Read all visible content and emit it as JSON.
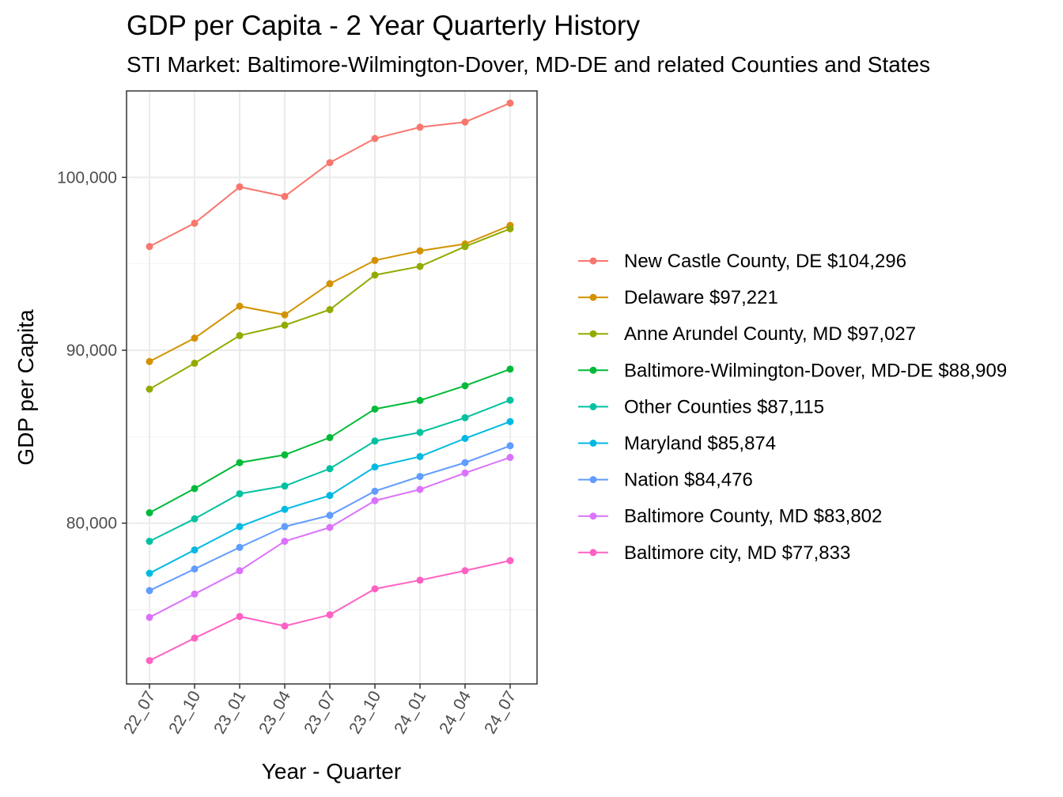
{
  "chart_data": {
    "type": "line",
    "title": "GDP per Capita - 2 Year Quarterly History",
    "subtitle": "STI Market: Baltimore-Wilmington-Dover, MD-DE and related Counties and States",
    "xlabel": "Year - Quarter",
    "ylabel": "GDP per Capita",
    "categories": [
      "22_07",
      "22_10",
      "23_01",
      "23_04",
      "23_07",
      "23_10",
      "24_01",
      "24_04",
      "24_07"
    ],
    "ylim": [
      70700,
      105000
    ],
    "yticks": [
      80000,
      90000,
      100000
    ],
    "ytick_labels": [
      "80,000",
      "90,000",
      "100,000"
    ],
    "grid": true,
    "legend_position": "right",
    "series": [
      {
        "name": "New Castle County, DE $104,296",
        "color": "#F8766D",
        "values": [
          96000,
          97350,
          99450,
          98900,
          100850,
          102250,
          102900,
          103200,
          104296
        ]
      },
      {
        "name": "Delaware $97,221",
        "color": "#D39200",
        "values": [
          89350,
          90700,
          92550,
          92050,
          93850,
          95200,
          95750,
          96150,
          97221
        ]
      },
      {
        "name": "Anne Arundel County, MD $97,027",
        "color": "#93AA00",
        "values": [
          87750,
          89250,
          90850,
          91450,
          92350,
          94350,
          94850,
          96000,
          97027
        ]
      },
      {
        "name": "Baltimore-Wilmington-Dover, MD-DE $88,909",
        "color": "#00BA38",
        "values": [
          80600,
          82000,
          83500,
          83950,
          84950,
          86600,
          87100,
          87950,
          88909
        ]
      },
      {
        "name": "Other Counties $87,115",
        "color": "#00C19F",
        "values": [
          78950,
          80250,
          81700,
          82150,
          83150,
          84750,
          85250,
          86100,
          87115
        ]
      },
      {
        "name": "Maryland $85,874",
        "color": "#00B9E3",
        "values": [
          77100,
          78450,
          79800,
          80800,
          81600,
          83250,
          83850,
          84900,
          85874
        ]
      },
      {
        "name": "Nation $84,476",
        "color": "#619CFF",
        "values": [
          76100,
          77350,
          78600,
          79800,
          80450,
          81850,
          82700,
          83500,
          84476
        ]
      },
      {
        "name": "Baltimore County, MD $83,802",
        "color": "#DB72FB",
        "values": [
          74550,
          75900,
          77250,
          78950,
          79750,
          81300,
          81950,
          82900,
          83802
        ]
      },
      {
        "name": "Baltimore city, MD $77,833",
        "color": "#FF61C3",
        "values": [
          72050,
          73350,
          74600,
          74050,
          74700,
          76200,
          76700,
          77250,
          77833
        ]
      }
    ]
  }
}
